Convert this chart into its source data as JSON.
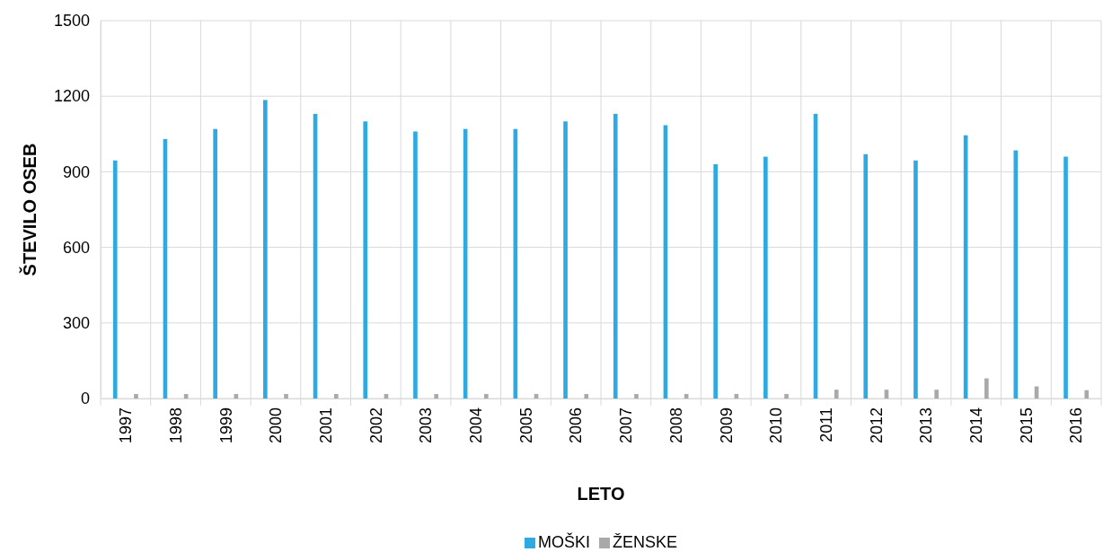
{
  "chart_data": {
    "type": "bar",
    "xlabel": "LETO",
    "ylabel": "ŠTEVILO OSEB",
    "categories": [
      "1997",
      "1998",
      "1999",
      "2000",
      "2001",
      "2002",
      "2003",
      "2004",
      "2005",
      "2006",
      "2007",
      "2008",
      "2009",
      "2010",
      "2011",
      "2012",
      "2013",
      "2014",
      "2015",
      "2016"
    ],
    "series": [
      {
        "name": "MOŠKI",
        "color": "#2eaae1",
        "values": [
          945,
          1030,
          1070,
          1185,
          1130,
          1100,
          1060,
          1070,
          1070,
          1100,
          1130,
          1085,
          930,
          960,
          1130,
          970,
          945,
          1045,
          985,
          960
        ]
      },
      {
        "name": "ŽENSKE",
        "color": "#a9a9ac",
        "values": [
          18,
          18,
          18,
          18,
          18,
          18,
          18,
          18,
          18,
          18,
          18,
          18,
          18,
          18,
          35,
          35,
          35,
          80,
          48,
          33
        ]
      }
    ],
    "ylim": [
      0,
      1500
    ],
    "yticks": [
      0,
      300,
      600,
      900,
      1200,
      1500
    ],
    "grid": true,
    "legend": "bottom"
  }
}
